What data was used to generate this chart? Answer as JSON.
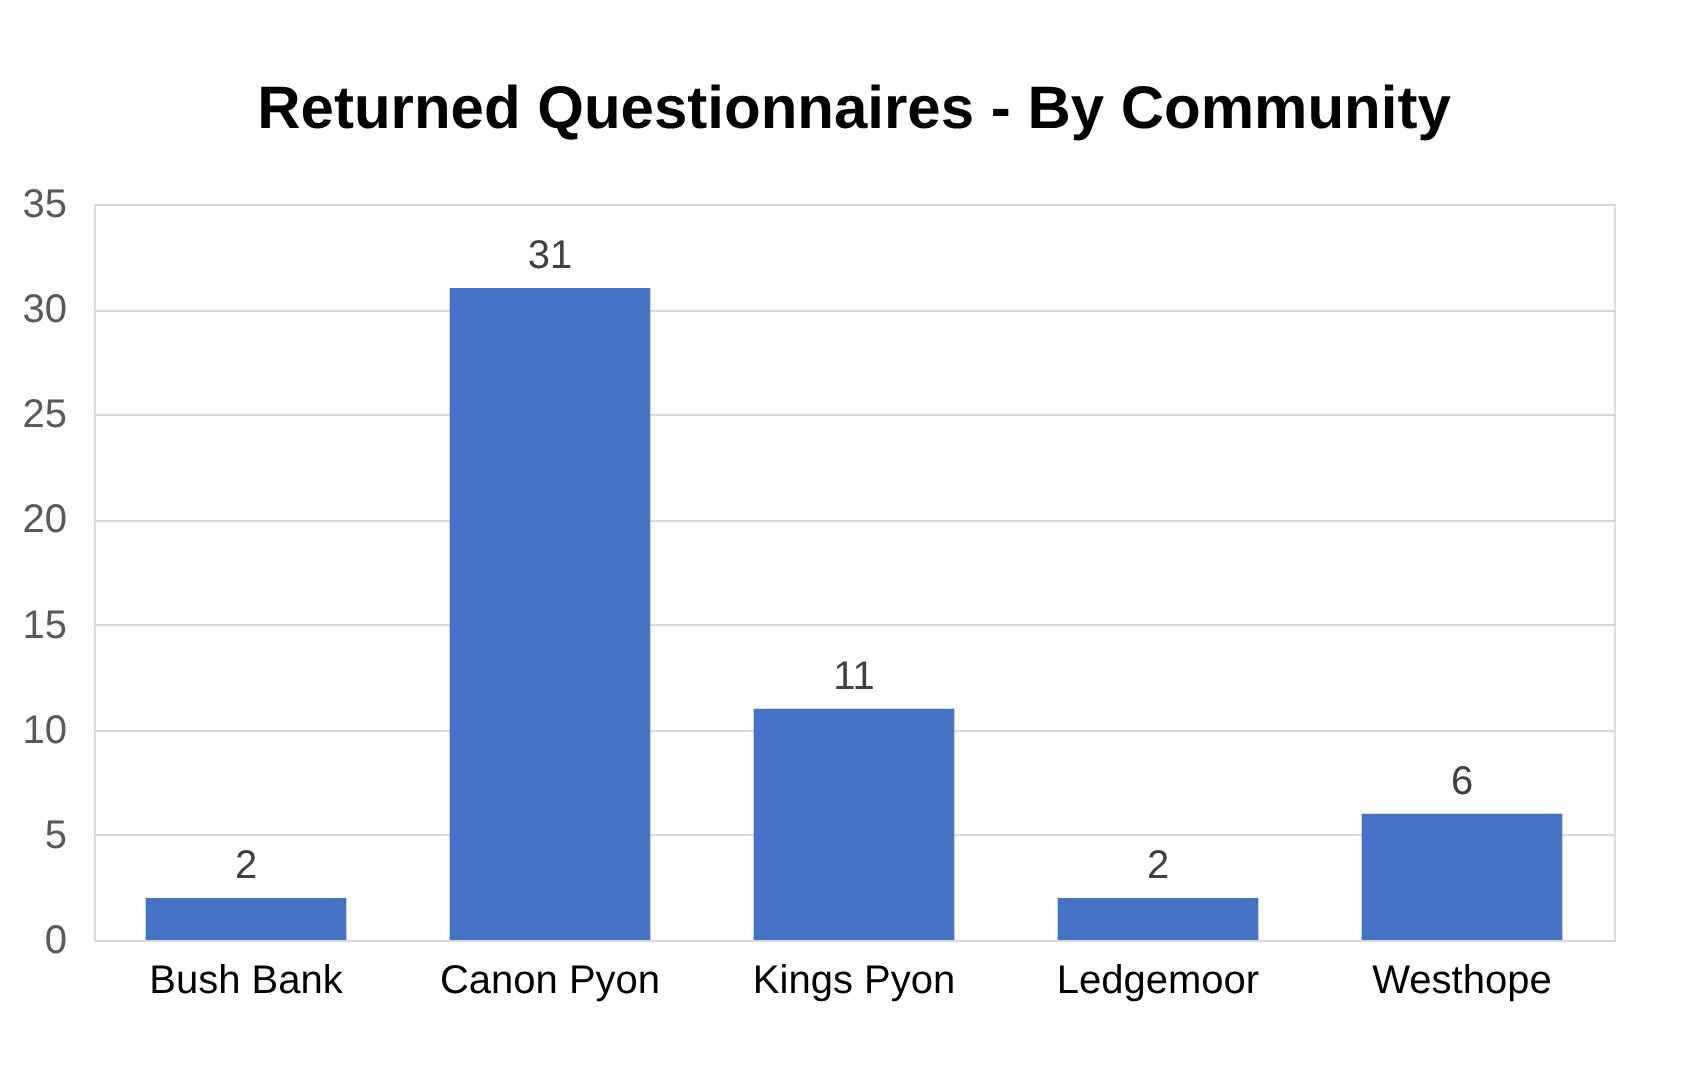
{
  "chart_data": {
    "type": "bar",
    "title": "Returned Questionnaires - By Community",
    "categories": [
      "Bush Bank",
      "Canon Pyon",
      "Kings Pyon",
      "Ledgemoor",
      "Westhope"
    ],
    "values": [
      2,
      31,
      11,
      2,
      6
    ],
    "color": "#4472c4",
    "ylim": [
      0,
      35
    ],
    "yticks": [
      0,
      5,
      10,
      15,
      20,
      25,
      30,
      35
    ],
    "grid": "y",
    "data_labels": true
  }
}
